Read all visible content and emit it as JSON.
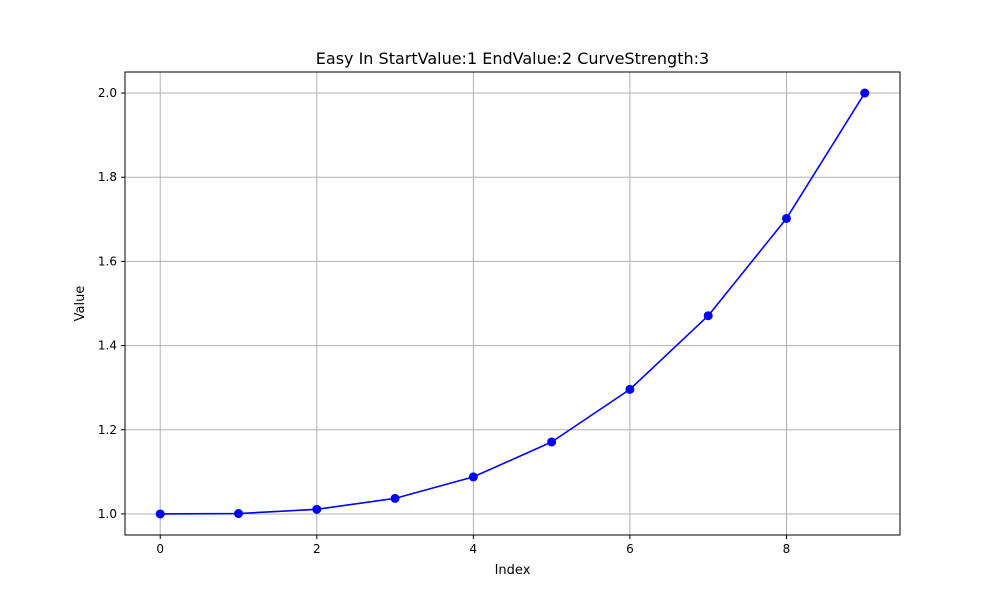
{
  "chart_data": {
    "type": "line",
    "title": "Easy In StartValue:1 EndValue:2 CurveStrength:3",
    "xlabel": "Index",
    "ylabel": "Value",
    "x": [
      0,
      1,
      2,
      3,
      4,
      5,
      6,
      7,
      8,
      9
    ],
    "series": [
      {
        "values": [
          1.0,
          1.001,
          1.011,
          1.037,
          1.088,
          1.171,
          1.296,
          1.471,
          1.702,
          2.0
        ],
        "color": "#0000ff",
        "marker": "circle"
      }
    ],
    "xlim": [
      -0.45,
      9.45
    ],
    "ylim": [
      0.95,
      2.05
    ],
    "xticks": [
      0,
      2,
      4,
      6,
      8
    ],
    "yticks": [
      1.0,
      1.2,
      1.4,
      1.6,
      1.8,
      2.0
    ],
    "xtick_labels": [
      "0",
      "2",
      "4",
      "6",
      "8"
    ],
    "ytick_labels": [
      "1.0",
      "1.2",
      "1.4",
      "1.6",
      "1.8",
      "2.0"
    ],
    "grid": true,
    "grid_color": "#b0b0b0"
  }
}
